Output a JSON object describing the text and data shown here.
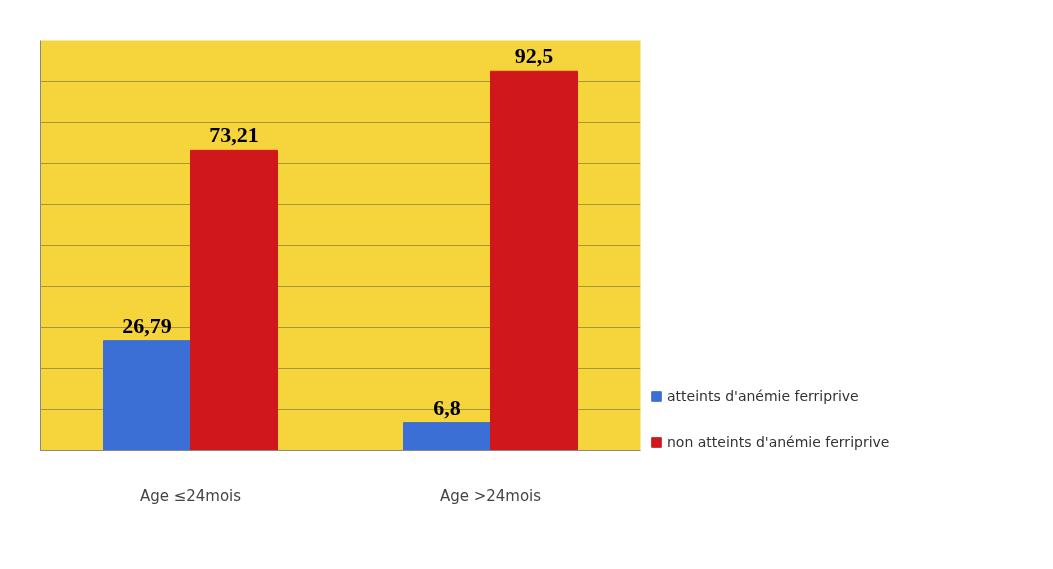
{
  "chart_data": {
    "type": "bar",
    "categories": [
      "Age ≤24mois",
      "Age >24mois"
    ],
    "series": [
      {
        "name": "atteints d'anémie ferriprive",
        "color": "#3b6fd6",
        "values": [
          26.79,
          6.8
        ],
        "value_labels": [
          "26,79",
          "6,8"
        ]
      },
      {
        "name": "non atteints d'anémie ferriprive",
        "color": "#d0181c",
        "values": [
          73.21,
          92.5
        ],
        "value_labels": [
          "73,21",
          "92,5"
        ]
      }
    ],
    "ylim": [
      0,
      100
    ],
    "yticks": [
      {
        "value": 0,
        "label": null
      },
      {
        "value": 10,
        "label": null
      },
      {
        "value": 20,
        "label": null
      },
      {
        "value": 30,
        "label": null
      },
      {
        "value": 40,
        "label": null
      },
      {
        "value": 50,
        "label": null
      },
      {
        "value": 60,
        "label": null
      },
      {
        "value": 70,
        "label": null
      },
      {
        "value": 80,
        "label": null
      },
      {
        "value": 90,
        "label": null
      },
      {
        "value": 100,
        "label": null
      }
    ],
    "tick_labels": "x",
    "grid": "y",
    "legend": "right"
  }
}
